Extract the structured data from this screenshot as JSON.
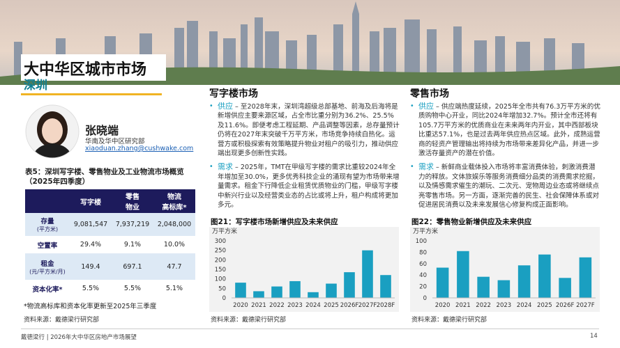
{
  "header": {
    "title": "大中华区城市市场",
    "subtitle": "深圳"
  },
  "author": {
    "name": "张晓端",
    "role": "华南及华中区研究部",
    "email": "xiaoduan.zhang@cushwake.com"
  },
  "table": {
    "title": [
      "表5：深圳写字楼、零售物业及工业物流市场概览",
      "（2025年四季度）"
    ],
    "columns": [
      [
        "写字楼"
      ],
      [
        "零售",
        "物业"
      ],
      [
        "物流",
        "高标库*"
      ]
    ],
    "rows": [
      {
        "label": "存量",
        "unit": "(平方米)",
        "values": [
          "9,081,547",
          "7,937,219",
          "2,048,000"
        ]
      },
      {
        "label": "空置率",
        "values": [
          "29.4%",
          "9.1%",
          "10.0%"
        ]
      },
      {
        "label": "租金",
        "unit": "(元/平方米/月)",
        "values": [
          "149.4",
          "697.1",
          "47.7"
        ]
      },
      {
        "label": "资本化率*",
        "values": [
          "5.5%",
          "5.5%",
          "5.1%"
        ]
      }
    ],
    "note": "*物流高标库和资本化率更新至2025年三季度",
    "source": "资料来源：戴德梁行研究部"
  },
  "sections": [
    {
      "heading": "写字楼市场",
      "bullets": [
        {
          "label": "供应",
          "text": " – 至2028年末，深圳湾超级总部基地、前海及后海将是新增供应主要来源区域，占全市比重分别为36.2%、25.5%及11.6%。即便考虑工程延期、产品调整等因素，总存量预计仍将在2027年末突破千万平方米，市场竞争持续白热化。运营方或积极探索有效策略提升物业对租户的吸引力，推动供应端出现更多创新性实践。"
        },
        {
          "label": "需求",
          "text": " – 2025年，TMT在甲级写字楼的需求比重较2024年全年增加至30.0%，更多优秀科技企业的涌现有望为市场带来增量需求。租金下行降低企业租赁优质物业的门槛，甲级写字楼中新兴行业以及经营类业态的占比或将上升，租户构成将更加多元。"
        }
      ],
      "source": "资料来源：戴德梁行研究部"
    },
    {
      "heading": "零售市场",
      "bullets": [
        {
          "label": "供应",
          "text": " – 供应端热度延续，2025年全市共有76.3万平方米的优质购物中心开业，同比2024年增加32.7%。预计全市还将有105.7万平方米的优质商业在未来两年内开业，其中西部板块比重达57.1%，也是过去两年供应热点区域。此外，成熟运营商的轻资产管理输出将持续为市场带来差异化产品，并进一步激活存量资产的潜在价值。"
        },
        {
          "label": "需求",
          "text": " – 新鲜商业载体投入市场将丰富消费体验，刺激消费潜力的释放。文体旅娱乐等服务消费细分品类的消费需求挖掘，以及情感需求催生的潮玩、二次元、宠物周边业态或将继续点亮零售市场。另一方面，逐渐完善的民生、社会保障体系或对促进居民消费以及未来发展信心修复构成正面影响。"
        }
      ],
      "source": "资料来源：戴德梁行研究部"
    }
  ],
  "chart_data": [
    {
      "type": "bar",
      "title": "图21：写字楼市场新增供应及未来供应",
      "y_axis_label": "万平方米",
      "categories": [
        "2020",
        "2021",
        "2022",
        "2023",
        "2024",
        "2025",
        "2026F",
        "2027F",
        "2028F"
      ],
      "values": [
        80,
        35,
        60,
        88,
        30,
        75,
        135,
        250,
        120
      ],
      "color": "#1a9fc1",
      "ylim": [
        0,
        300
      ],
      "yticks": [
        0,
        50,
        100,
        150,
        200,
        250,
        300
      ]
    },
    {
      "type": "bar",
      "title": "图22：零售物业新增供应及未来供应",
      "y_axis_label": "万平方米",
      "categories": [
        "2020",
        "2021",
        "2022",
        "2023",
        "2024",
        "2025",
        "2026F",
        "2027F"
      ],
      "values": [
        53,
        82,
        37,
        31,
        57,
        76,
        35,
        71
      ],
      "color": "#1a9fc1",
      "ylim": [
        0,
        100
      ],
      "yticks": [
        0,
        20,
        40,
        60,
        80,
        100
      ]
    }
  ],
  "footer": {
    "text": "戴德梁行 | 2026年大中华区房地产市场展望",
    "page": "14"
  }
}
